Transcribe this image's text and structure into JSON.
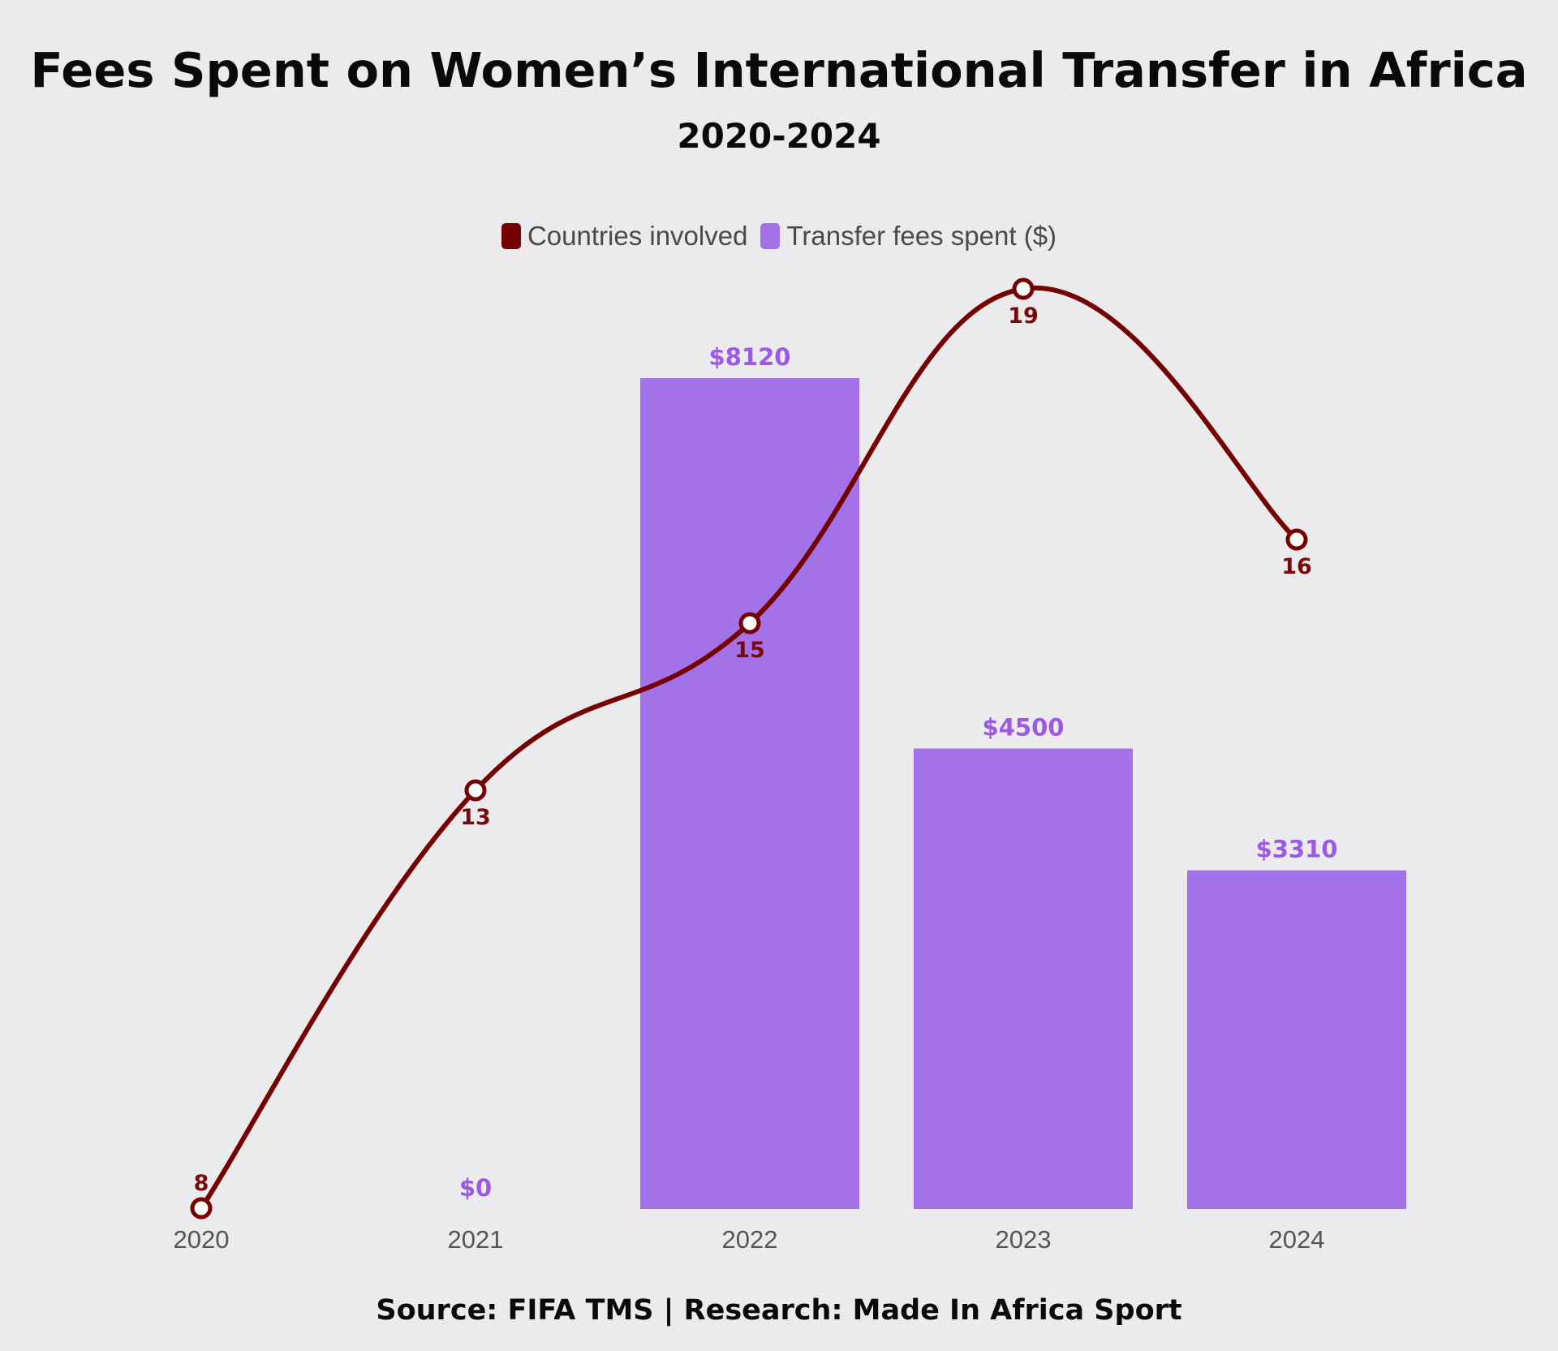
{
  "title": "Fees Spent on Women’s International Transfer in Africa",
  "subtitle": "2020-2024",
  "source": "Source: FIFA TMS | Research: Made In Africa Sport",
  "colors": {
    "background": "#EBEAEC",
    "line": "#750000",
    "bar": "#A371E8",
    "bar_label": "#9B59E6"
  },
  "chart_data": {
    "type": "bar",
    "categories": [
      "2020",
      "2021",
      "2022",
      "2023",
      "2024"
    ],
    "series": [
      {
        "name": "Countries involved",
        "type": "line",
        "values": [
          8,
          13,
          15,
          19,
          16
        ],
        "labels": [
          "8",
          "13",
          "15",
          "19",
          "16"
        ]
      },
      {
        "name": "Transfer fees spent ($)",
        "type": "bar",
        "values": [
          null,
          0,
          8120,
          4500,
          3310
        ],
        "labels": [
          "",
          "$0",
          "$8120",
          "$4500",
          "$3310"
        ]
      }
    ],
    "legend": "top-center",
    "grid": false,
    "y_left_range": [
      0,
      8500
    ],
    "y_right_range": [
      8,
      19
    ]
  }
}
